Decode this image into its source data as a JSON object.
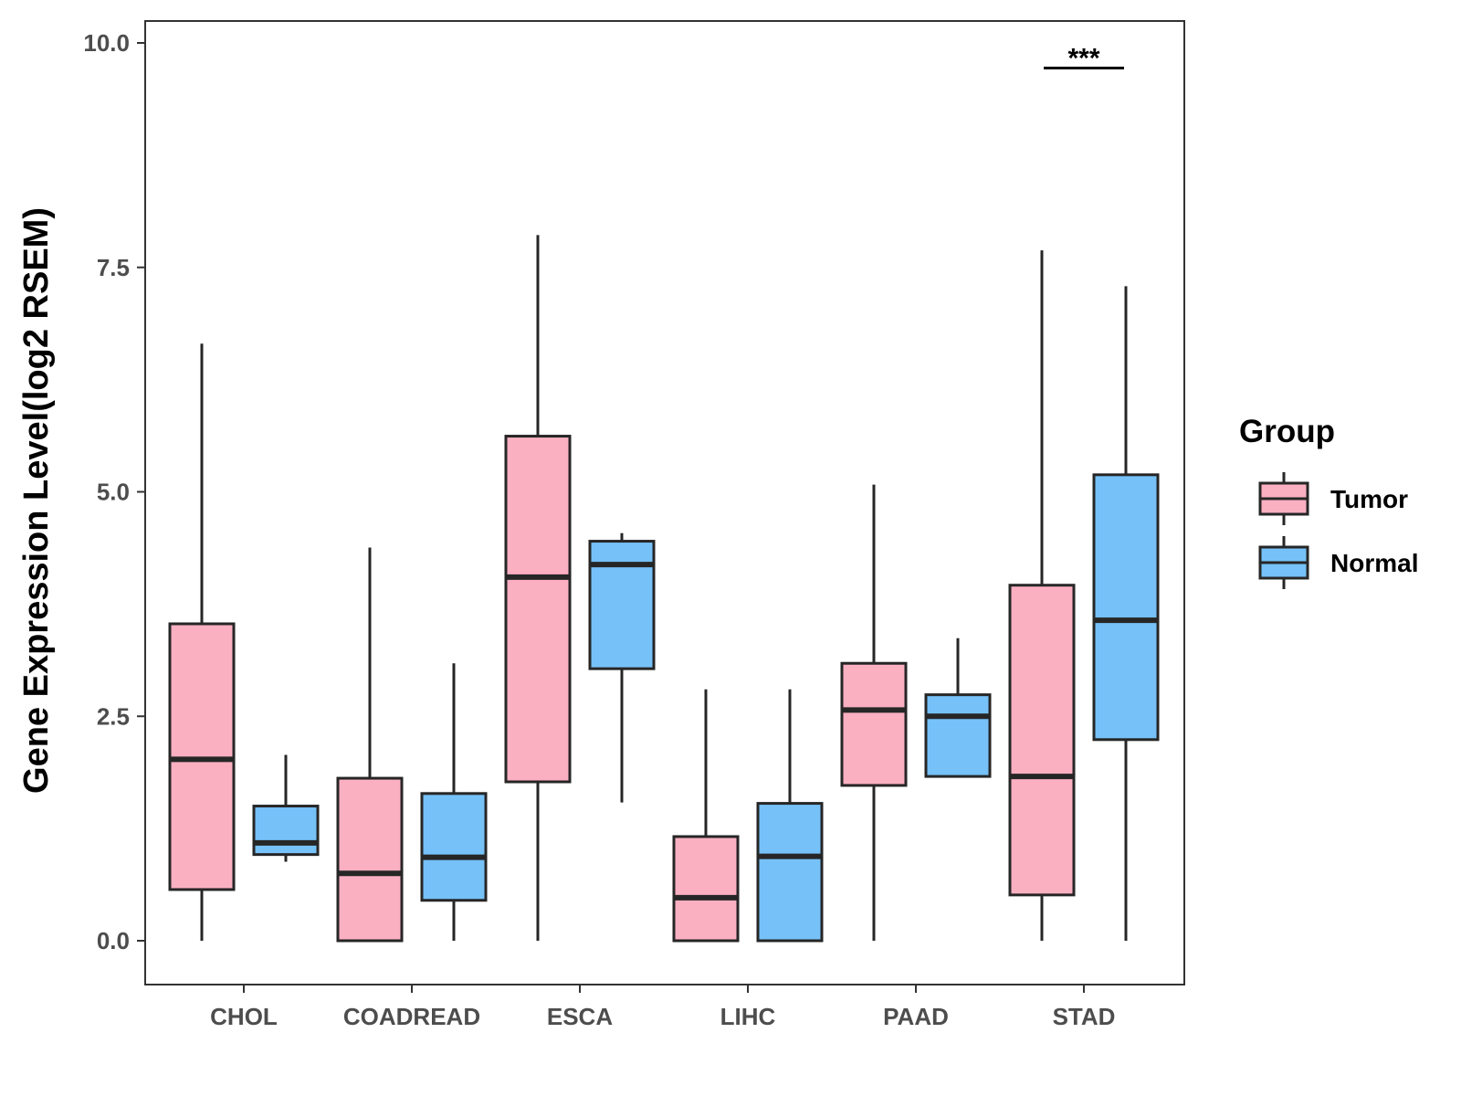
{
  "chart_data": {
    "type": "boxplot",
    "ylabel": "Gene Expression Level(log2 RSEM)",
    "xlabel": "",
    "ylim": [
      -0.45,
      10.25
    ],
    "yticks": [
      0.0,
      2.5,
      5.0,
      7.5,
      10.0
    ],
    "ytick_labels": [
      "0.0",
      "2.5",
      "5.0",
      "7.5",
      "10.0"
    ],
    "categories": [
      "CHOL",
      "COADREAD",
      "ESCA",
      "LIHC",
      "PAAD",
      "STAD"
    ],
    "legend": {
      "title": "Group",
      "position": "right"
    },
    "series": [
      {
        "name": "Tumor",
        "color": "#fbb0c2",
        "boxes": [
          {
            "min": 0.0,
            "q1": 0.57,
            "median": 2.02,
            "q3": 3.53,
            "max": 6.65
          },
          {
            "min": 0.0,
            "q1": 0.0,
            "median": 0.75,
            "q3": 1.81,
            "max": 4.38
          },
          {
            "min": 0.0,
            "q1": 1.77,
            "median": 4.05,
            "q3": 5.62,
            "max": 7.86
          },
          {
            "min": 0.0,
            "q1": 0.0,
            "median": 0.48,
            "q3": 1.16,
            "max": 2.8
          },
          {
            "min": 0.0,
            "q1": 1.73,
            "median": 2.57,
            "q3": 3.09,
            "max": 5.08
          },
          {
            "min": 0.0,
            "q1": 0.51,
            "median": 1.83,
            "q3": 3.96,
            "max": 7.69
          }
        ]
      },
      {
        "name": "Normal",
        "color": "#76c1f8",
        "boxes": [
          {
            "min": 0.88,
            "q1": 0.96,
            "median": 1.09,
            "q3": 1.5,
            "max": 2.07
          },
          {
            "min": 0.0,
            "q1": 0.45,
            "median": 0.93,
            "q3": 1.64,
            "max": 3.09
          },
          {
            "min": 1.54,
            "q1": 3.03,
            "median": 4.19,
            "q3": 4.45,
            "max": 4.54
          },
          {
            "min": 0.0,
            "q1": 0.0,
            "median": 0.94,
            "q3": 1.53,
            "max": 2.8
          },
          {
            "min": 1.83,
            "q1": 1.83,
            "median": 2.5,
            "q3": 2.74,
            "max": 3.37
          },
          {
            "min": 0.0,
            "q1": 2.24,
            "median": 3.57,
            "q3": 5.19,
            "max": 7.29
          }
        ]
      }
    ],
    "annotations": [
      {
        "category": "STAD",
        "text": "***",
        "y": 9.72
      }
    ]
  }
}
